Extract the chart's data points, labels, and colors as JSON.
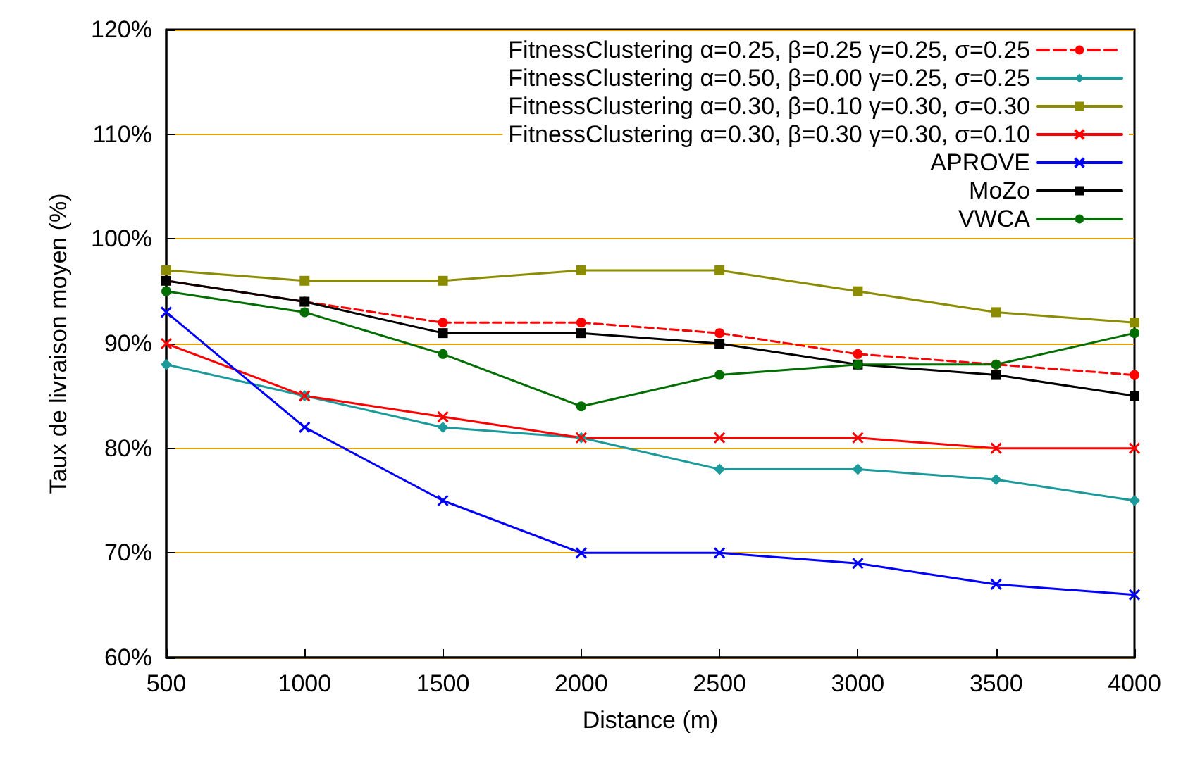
{
  "chart_data": {
    "type": "line",
    "xlabel": "Distance (m)",
    "ylabel": "Taux de livraison moyen (%)",
    "x": [
      500,
      1000,
      1500,
      2000,
      2500,
      3000,
      3500,
      4000
    ],
    "xlim": [
      500,
      4000
    ],
    "xticks": [
      500,
      1000,
      1500,
      2000,
      2500,
      3000,
      3500,
      4000
    ],
    "ylim": [
      60,
      120
    ],
    "yticks": [
      {
        "value": 60,
        "label": "60%"
      },
      {
        "value": 70,
        "label": "70%"
      },
      {
        "value": 80,
        "label": "80%"
      },
      {
        "value": 90,
        "label": "90%"
      },
      {
        "value": 100,
        "label": "100%"
      },
      {
        "value": 110,
        "label": "110%"
      },
      {
        "value": 120,
        "label": "120%"
      }
    ],
    "grid": "y",
    "legend": "top right",
    "series": [
      {
        "name": "FitnessClustering α=0.25, β=0.25 γ=0.25, σ=0.25",
        "color": "#ff0000",
        "marker": "circle",
        "line_style": "dashed",
        "values": [
          96,
          94,
          92,
          92,
          91,
          89,
          88,
          87
        ]
      },
      {
        "name": "FitnessClustering α=0.50, β=0.00 γ=0.25, σ=0.25",
        "color": "#1a9a9a",
        "marker": "diamond",
        "line_style": "solid",
        "values": [
          88,
          85,
          82,
          81,
          78,
          78,
          77,
          75
        ]
      },
      {
        "name": "FitnessClustering α=0.30, β=0.10 γ=0.30, σ=0.30",
        "color": "#8c8c00",
        "marker": "square",
        "line_style": "solid",
        "values": [
          97,
          96,
          96,
          97,
          97,
          95,
          93,
          92
        ]
      },
      {
        "name": "FitnessClustering α=0.30, β=0.30 γ=0.30, σ=0.10",
        "color": "#ff0000",
        "marker": "cross",
        "line_style": "solid",
        "values": [
          90,
          85,
          83,
          81,
          81,
          81,
          80,
          80
        ]
      },
      {
        "name": "APROVE",
        "color": "#0000ff",
        "marker": "cross",
        "line_style": "solid",
        "values": [
          93,
          82,
          75,
          70,
          70,
          69,
          67,
          66
        ]
      },
      {
        "name": "MoZo",
        "color": "#000000",
        "marker": "square",
        "line_style": "solid",
        "values": [
          96,
          94,
          91,
          91,
          90,
          88,
          87,
          85
        ]
      },
      {
        "name": "VWCA",
        "color": "#006e00",
        "marker": "circle",
        "line_style": "solid",
        "values": [
          95,
          93,
          89,
          84,
          87,
          88,
          88,
          91
        ]
      }
    ]
  }
}
